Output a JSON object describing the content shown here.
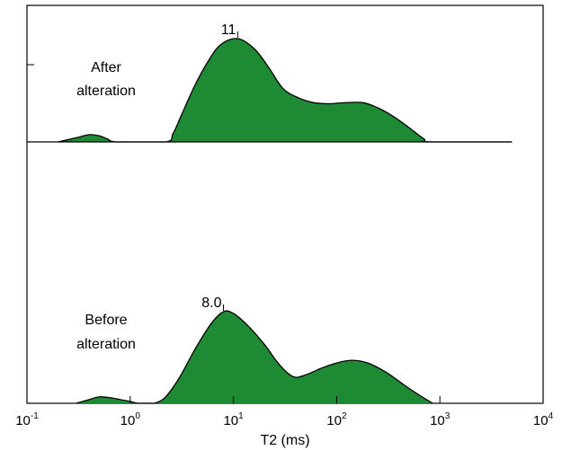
{
  "chart_data": {
    "type": "area",
    "xlabel": "T2 (ms)",
    "xscale": "log",
    "xlim": [
      0.1,
      10000
    ],
    "x_ticks": [
      {
        "value": 0.1,
        "base": "10",
        "exp": "-1"
      },
      {
        "value": 1,
        "base": "10",
        "exp": "0"
      },
      {
        "value": 10,
        "base": "10",
        "exp": "1"
      },
      {
        "value": 100,
        "base": "10",
        "exp": "2"
      },
      {
        "value": 1000,
        "base": "10",
        "exp": "3"
      },
      {
        "value": 10000,
        "base": "10",
        "exp": "4"
      }
    ],
    "fill_color": "#1f8a34",
    "line_color": "#000000",
    "grid": false,
    "series": [
      {
        "name_lines": [
          "After",
          "alteration"
        ],
        "peak_label": "11",
        "peak_x": 11,
        "points": [
          [
            0.2,
            0.0
          ],
          [
            0.3,
            0.04
          ],
          [
            0.4,
            0.07
          ],
          [
            0.5,
            0.06
          ],
          [
            0.6,
            0.03
          ],
          [
            0.75,
            0.0
          ],
          [
            2.2,
            0.0
          ],
          [
            2.6,
            0.08
          ],
          [
            3.2,
            0.28
          ],
          [
            4.2,
            0.54
          ],
          [
            5.6,
            0.77
          ],
          [
            7.5,
            0.94
          ],
          [
            11,
            1.0
          ],
          [
            16,
            0.9
          ],
          [
            22,
            0.72
          ],
          [
            30,
            0.52
          ],
          [
            42,
            0.43
          ],
          [
            60,
            0.38
          ],
          [
            85,
            0.37
          ],
          [
            120,
            0.38
          ],
          [
            180,
            0.38
          ],
          [
            250,
            0.33
          ],
          [
            350,
            0.25
          ],
          [
            500,
            0.14
          ],
          [
            700,
            0.03
          ],
          [
            850,
            0.0
          ],
          [
            5000,
            0.0
          ]
        ]
      },
      {
        "name_lines": [
          "Before",
          "alteration"
        ],
        "peak_label": "8.0",
        "peak_x": 8.0,
        "points": [
          [
            0.3,
            0.0
          ],
          [
            0.4,
            0.04
          ],
          [
            0.5,
            0.07
          ],
          [
            0.65,
            0.06
          ],
          [
            0.8,
            0.04
          ],
          [
            1.0,
            0.02
          ],
          [
            1.2,
            0.0
          ],
          [
            1.7,
            0.0
          ],
          [
            2.2,
            0.07
          ],
          [
            3.0,
            0.28
          ],
          [
            4.2,
            0.58
          ],
          [
            6.0,
            0.86
          ],
          [
            8.0,
            1.0
          ],
          [
            10,
            0.98
          ],
          [
            14,
            0.84
          ],
          [
            20,
            0.64
          ],
          [
            28,
            0.42
          ],
          [
            38,
            0.29
          ],
          [
            50,
            0.31
          ],
          [
            70,
            0.38
          ],
          [
            100,
            0.44
          ],
          [
            140,
            0.47
          ],
          [
            200,
            0.44
          ],
          [
            300,
            0.34
          ],
          [
            450,
            0.2
          ],
          [
            650,
            0.08
          ],
          [
            850,
            0.0
          ]
        ]
      }
    ]
  }
}
